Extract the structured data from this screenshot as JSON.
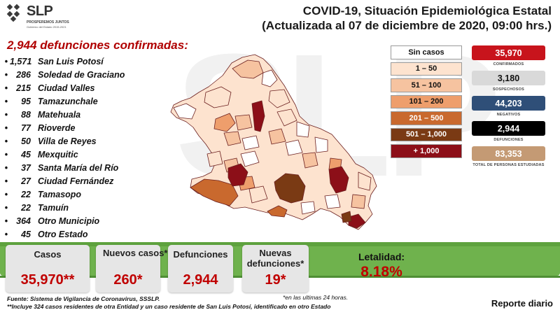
{
  "watermark": "SLP",
  "logo": {
    "text": "SLP",
    "tagline": "PROSPEREMOS JUNTOS",
    "sub": "Gobierno del Estado 2015-2021"
  },
  "header": {
    "title_line1": "COVID-19, Situación Epidemiológica Estatal",
    "title_line2": "(Actualizada al 07 de diciembre de 2020, 09:00 hrs.)"
  },
  "deaths_heading": "2,944 defunciones confirmadas:",
  "municipalities": [
    {
      "count": "1,571",
      "name": "San Luis Potosí"
    },
    {
      "count": "286",
      "name": "Soledad de Graciano"
    },
    {
      "count": "215",
      "name": "Ciudad Valles"
    },
    {
      "count": "95",
      "name": "Tamazunchale"
    },
    {
      "count": "88",
      "name": "Matehuala"
    },
    {
      "count": "77",
      "name": "Rioverde"
    },
    {
      "count": "50",
      "name": "Villa de Reyes"
    },
    {
      "count": "45",
      "name": "Mexquitic"
    },
    {
      "count": "37",
      "name": "Santa María del Río"
    },
    {
      "count": "27",
      "name": "Ciudad Fernández"
    },
    {
      "count": "22",
      "name": "Tamasopo"
    },
    {
      "count": "22",
      "name": "Tamuín"
    },
    {
      "count": "364",
      "name": "Otro Municipio"
    },
    {
      "count": "45",
      "name": "Otro Estado"
    }
  ],
  "legend": [
    {
      "label": "Sin casos",
      "color": "#ffffff",
      "text_color": "#111111"
    },
    {
      "label": "1 – 50",
      "color": "#fde3cf",
      "text_color": "#111111"
    },
    {
      "label": "51 – 100",
      "color": "#f6c3a0",
      "text_color": "#111111"
    },
    {
      "label": "101 – 200",
      "color": "#ee9e6c",
      "text_color": "#111111"
    },
    {
      "label": "201 – 500",
      "color": "#c9692e",
      "text_color": "#ffffff"
    },
    {
      "label": "501 – 1,000",
      "color": "#7a3a14",
      "text_color": "#ffffff"
    },
    {
      "label": "+ 1,000",
      "color": "#8c0f18",
      "text_color": "#ffffff"
    }
  ],
  "stats": [
    {
      "value": "35,970",
      "label": "CONFIRMADOS",
      "bg": "#c8141c",
      "fg": "#ffffff"
    },
    {
      "value": "3,180",
      "label": "SOSPECHOSOS",
      "bg": "#d9d9d9",
      "fg": "#111111"
    },
    {
      "value": "44,203",
      "label": "NEGATIVOS",
      "bg": "#2f4f78",
      "fg": "#ffffff"
    },
    {
      "value": "2,944",
      "label": "DEFUNCIONES",
      "bg": "#000000",
      "fg": "#ffffff"
    },
    {
      "value": "83,353",
      "label": "TOTAL DE PERSONAS ESTUDIADAS",
      "bg": "#c49a74",
      "fg": "#ffffff"
    }
  ],
  "bottom": {
    "casos_label": "Casos",
    "casos_value": "35,970**",
    "nuevos_casos_label": "Nuevos casos*",
    "nuevos_casos_value": "260*",
    "defunciones_label": "Defunciones",
    "defunciones_value": "2,944",
    "nuevas_def_label": "Nuevas defunciones*",
    "nuevas_def_value": "19*",
    "letalidad_label": "Letalidad:",
    "letalidad_value": "8.18%"
  },
  "footnotes": {
    "last_24h": "*en las ultimas 24 horas.",
    "source": "Fuente: Sistema de Vigilancia de Coronavirus, SSSLP.",
    "note": "**Incluye 324 casos residentes de otra Entidad y un caso residente de San Luis Potosí, identificado en otro Estado",
    "report": "Reporte diario"
  }
}
